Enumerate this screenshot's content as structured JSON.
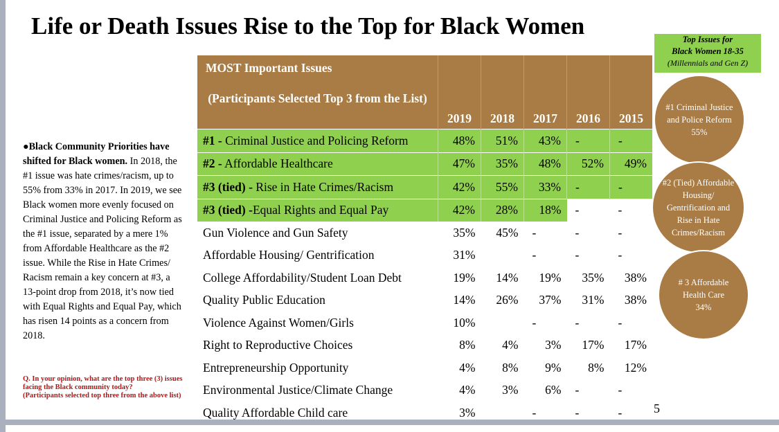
{
  "title": "Life or Death Issues Rise to the Top for Black Women",
  "note_bold": "●Black Community Priorities have shifted for Black women.",
  "note_text": " In 2018, the #1 issue was hate crimes/racism, up to 55% from 33% in 2017.   In 2019, we see Black women more evenly focused on Criminal Justice and Policing Reform as the #1 issue, separated by a mere 1% from Affordable Healthcare as the #2 issue. While the Rise in Hate Crimes/ Racism remain a key concern at #3, a 13-point drop from 2018, it’s now tied with Equal Rights and Equal Pay, which has risen 14 points as a concern from 2018.",
  "table": {
    "header_line1": "MOST Important Issues",
    "header_line2": "(Participants Selected Top 3 from the List)",
    "years": [
      "2019",
      "2018",
      "2017",
      "2016",
      "2015"
    ],
    "rows": [
      {
        "prefix": "#1 -",
        "label": " Criminal Justice and Policing Reform",
        "values": [
          "48%",
          "51%",
          "43%",
          "-",
          "-"
        ]
      },
      {
        "prefix": "#2 -",
        "label": " Affordable Healthcare",
        "values": [
          "47%",
          "35%",
          "48%",
          "52%",
          "49%"
        ]
      },
      {
        "prefix": "#3 (tied) -",
        "label": " Rise in Hate Crimes/Racism",
        "values": [
          "42%",
          "55%",
          "33%",
          "-",
          "-"
        ]
      },
      {
        "prefix": "#3 (tied) -",
        "label": "Equal Rights and Equal Pay",
        "values": [
          "42%",
          "28%",
          "18%",
          "-",
          "-"
        ]
      },
      {
        "label": "Gun Violence and Gun Safety",
        "values": [
          "35%",
          "45%",
          "-",
          "-",
          "-"
        ]
      },
      {
        "label": "Affordable Housing/ Gentrification",
        "values": [
          "31%",
          "",
          "-",
          "-",
          "-"
        ]
      },
      {
        "label": "College Affordability/Student Loan Debt",
        "values": [
          "19%",
          "14%",
          "19%",
          "35%",
          "38%"
        ]
      },
      {
        "label": "Quality Public Education",
        "values": [
          "14%",
          "26%",
          "37%",
          "31%",
          "38%"
        ]
      },
      {
        "label": "Violence Against Women/Girls",
        "values": [
          "10%",
          "",
          "-",
          "-",
          "-"
        ]
      },
      {
        "label": "Right to Reproductive Choices",
        "values": [
          "8%",
          "4%",
          "3%",
          "17%",
          "17%"
        ]
      },
      {
        "label": "Entrepreneurship Opportunity",
        "values": [
          "4%",
          "8%",
          "9%",
          "8%",
          "12%"
        ]
      },
      {
        "label": "Environmental Justice/Climate Change",
        "values": [
          "4%",
          "3%",
          "6%",
          "-",
          "-"
        ]
      },
      {
        "label": "Quality Affordable Child care",
        "values": [
          "3%",
          "",
          "-",
          "-",
          "-"
        ]
      }
    ]
  },
  "question": "Q. In your opinion, what are the top three (3) issues facing the Black community today?",
  "question_sub": "(Participants selected top three from the above list)",
  "page_number": "5",
  "sidebar": {
    "title1": "Top Issues for",
    "title2": "Black Women 18-35",
    "subtitle": "(Millennials and Gen Z)",
    "circles": [
      "#1 Criminal Justice and Police Reform  55%",
      "#2 (Tied) Affordable Housing/ Gentrification and Rise in Hate Crimes/Racism",
      "# 3 Affordable Health Care 34%"
    ]
  }
}
